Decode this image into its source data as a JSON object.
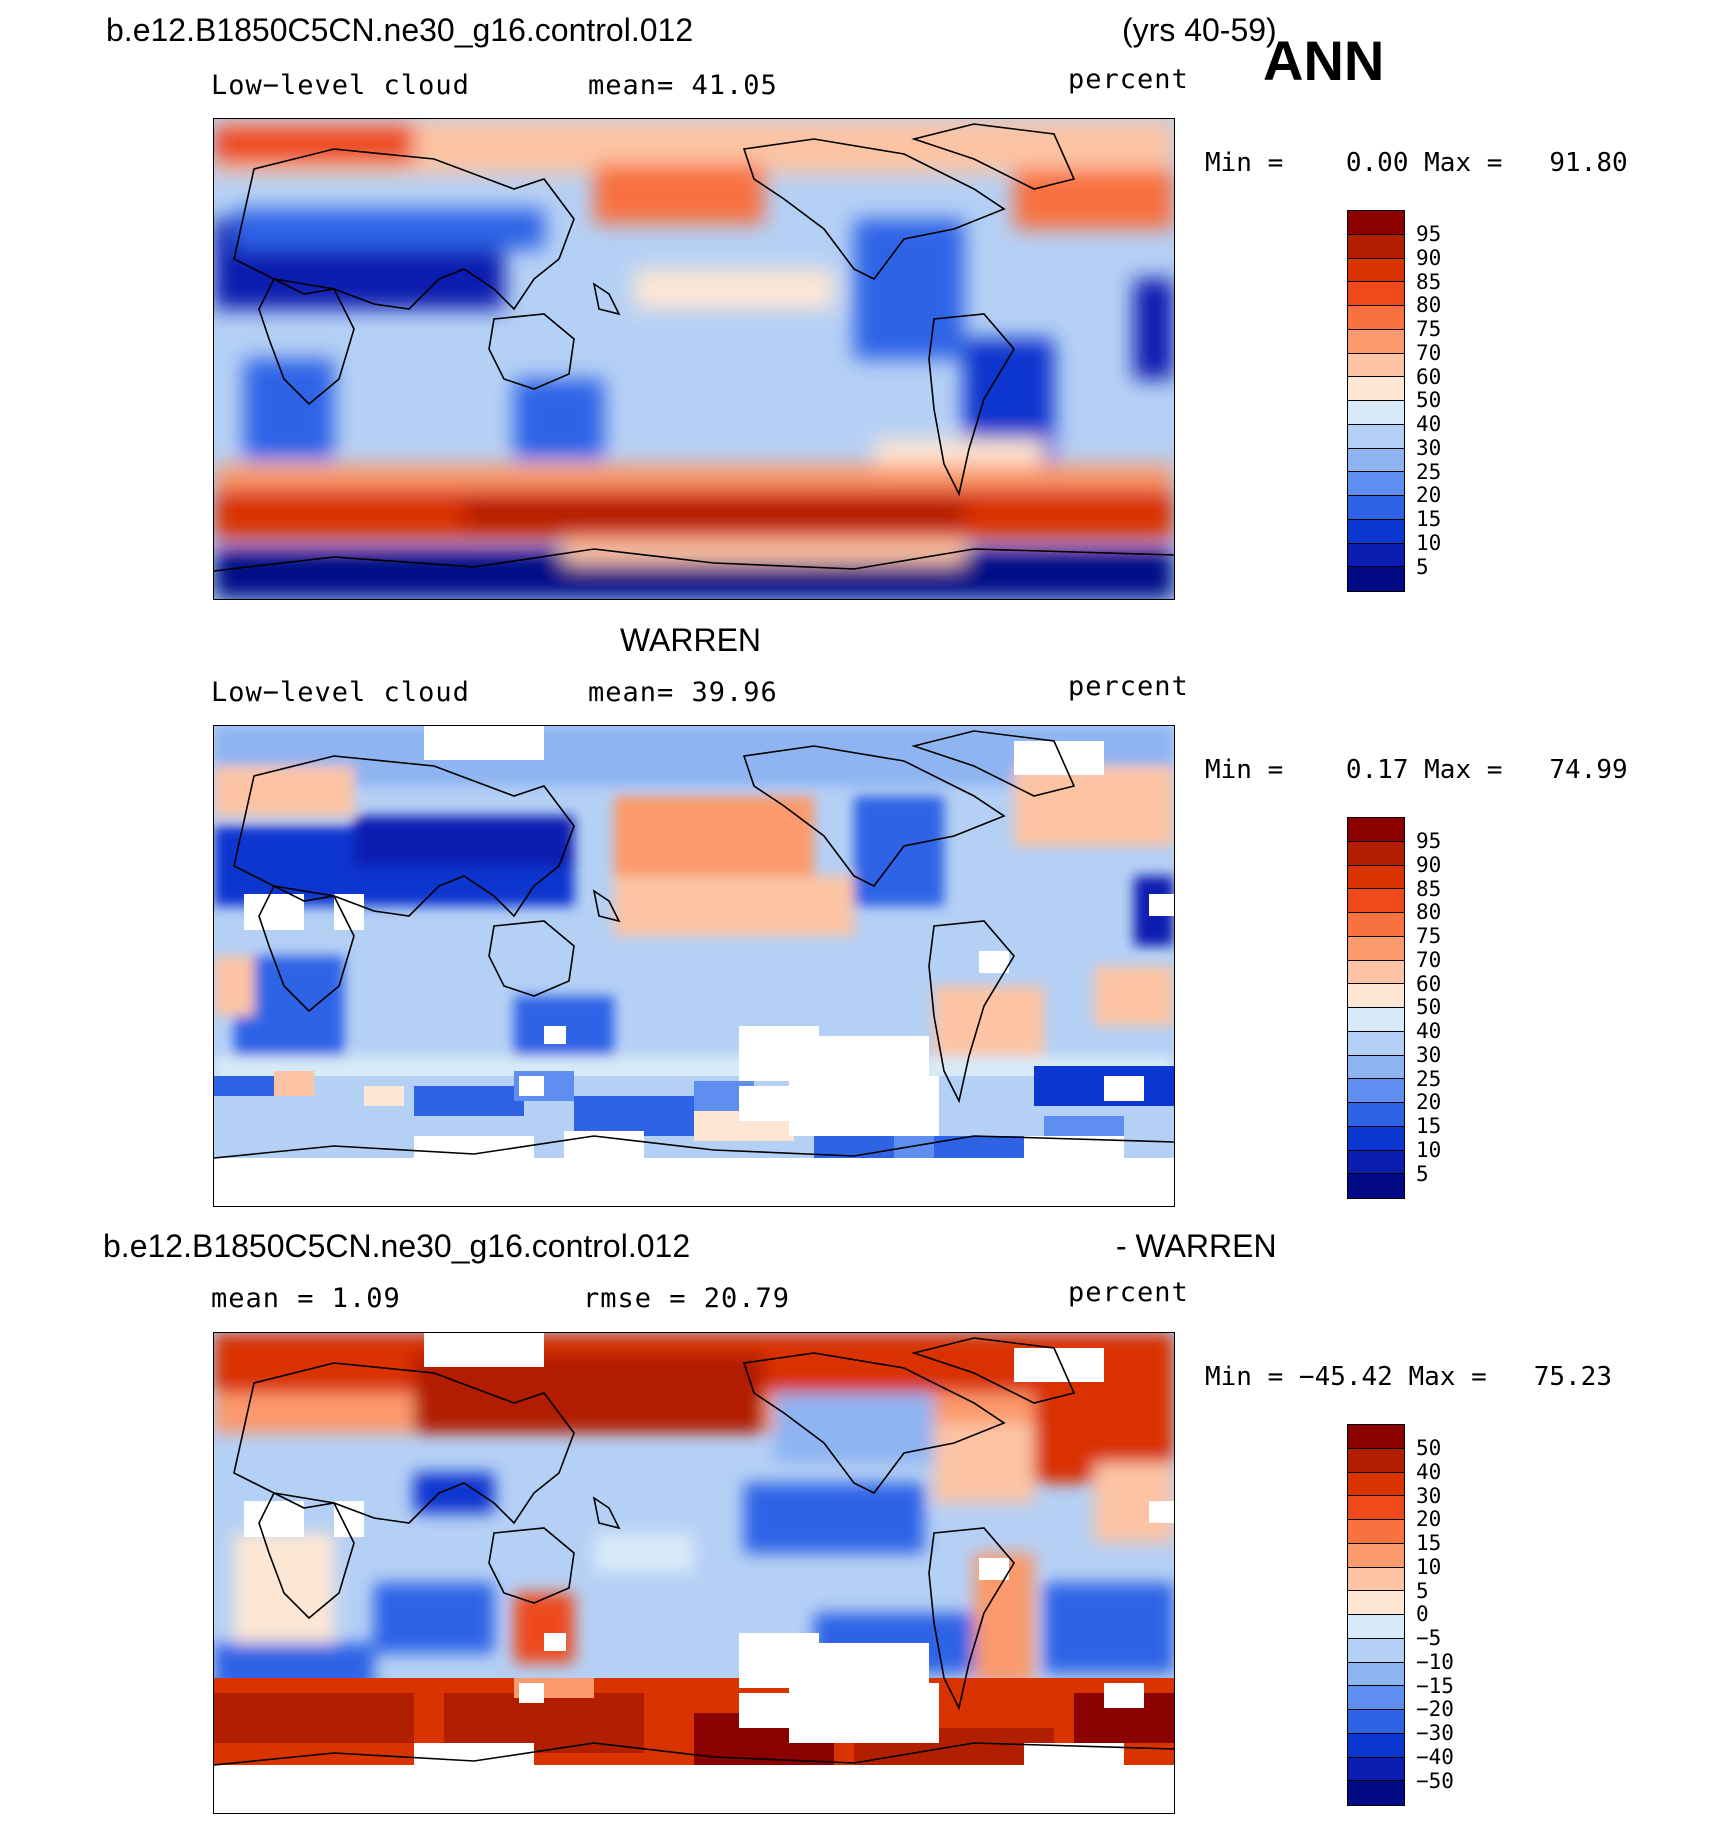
{
  "season": "ANN",
  "case_title": "b.e12.B1850C5CN.ne30_g16.control.012",
  "years": "(yrs 40-59)",
  "panels": [
    {
      "id": "model",
      "var_label": "Low−level cloud",
      "mean_text": "mean=   41.05",
      "units": "percent",
      "minmax": "Min =    0.00 Max =   91.80",
      "colorbar": "levels",
      "missing_regions": "none"
    },
    {
      "id": "obs",
      "title": "WARREN",
      "var_label": "Low−level cloud",
      "mean_text": "mean=   39.96",
      "units": "percent",
      "minmax": "Min =    0.17 Max =   74.99",
      "colorbar": "levels",
      "missing_regions": "white patches (no data)"
    },
    {
      "id": "diff",
      "title_left": "b.e12.B1850C5CN.ne30_g16.control.012",
      "title_right": "- WARREN",
      "mean_text": "mean =    1.09",
      "rmse_text": "rmse =   20.79",
      "units": "percent",
      "minmax": "Min = −45.42 Max =   75.23",
      "colorbar": "diff_levels"
    }
  ],
  "colorbars": {
    "levels": [
      "95",
      "90",
      "85",
      "80",
      "75",
      "70",
      "60",
      "50",
      "40",
      "30",
      "25",
      "20",
      "15",
      "10",
      "5"
    ],
    "levels_colors": [
      "#8b0000",
      "#b21e00",
      "#d93300",
      "#ee4a1a",
      "#f8713f",
      "#fb9a6c",
      "#fcc4a4",
      "#fde7d4",
      "#d8eaf8",
      "#b5d0f5",
      "#8eb4f2",
      "#5e8ff0",
      "#2f63e6",
      "#0b36cf",
      "#0a1fb0",
      "#020a86"
    ],
    "diff_levels": [
      "50",
      "40",
      "30",
      "20",
      "15",
      "10",
      "5",
      "0",
      "−5",
      "−10",
      "−15",
      "−20",
      "−30",
      "−40",
      "−50"
    ]
  },
  "map": {
    "projection": "cylindrical equidistant, centered on Pacific",
    "coastlines": true
  }
}
